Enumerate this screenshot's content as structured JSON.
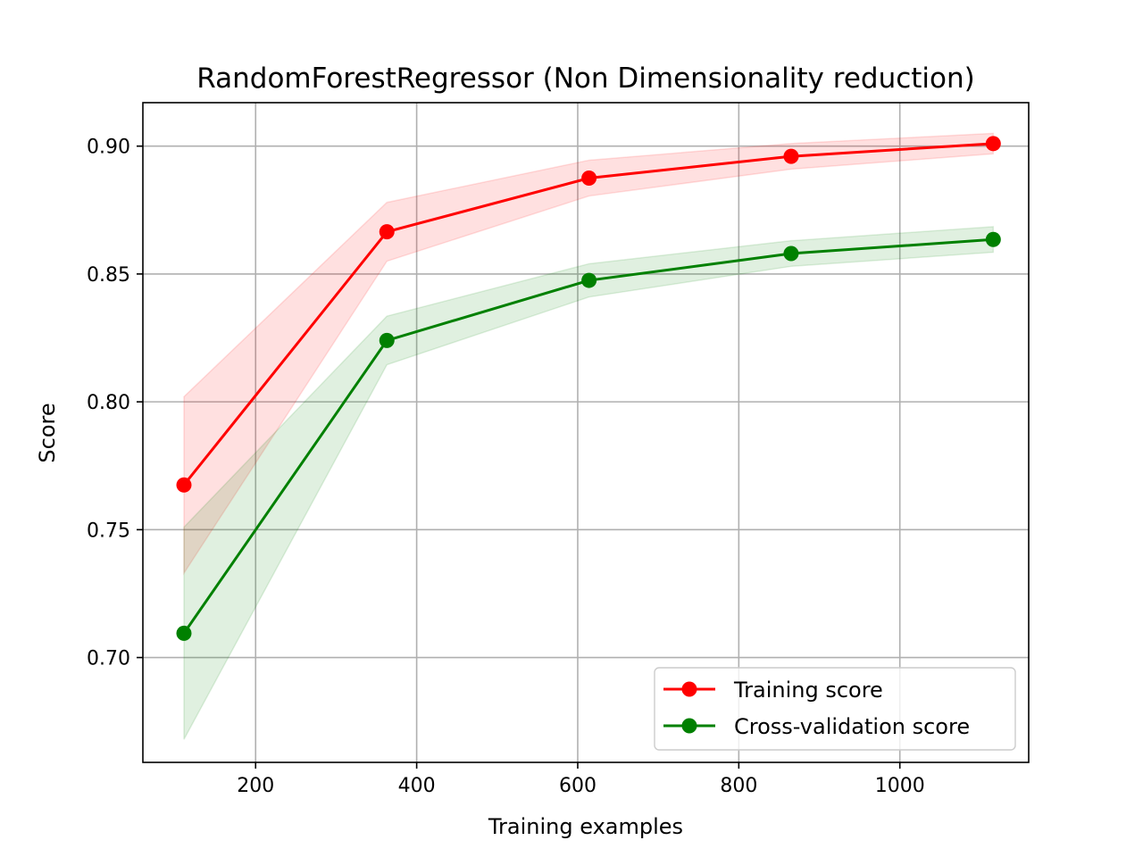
{
  "chart_data": {
    "type": "line",
    "title": "RandomForestRegressor (Non Dimensionality reduction)",
    "xlabel": "Training examples",
    "ylabel": "Score",
    "xlim": [
      60,
      1160
    ],
    "ylim": [
      0.659,
      0.917
    ],
    "xticks": [
      200,
      400,
      600,
      800,
      1000
    ],
    "yticks": [
      0.7,
      0.75,
      0.8,
      0.85,
      0.9
    ],
    "xtick_labels": [
      "200",
      "400",
      "600",
      "800",
      "1000"
    ],
    "ytick_labels": [
      "0.70",
      "0.75",
      "0.80",
      "0.85",
      "0.90"
    ],
    "grid": true,
    "legend_position": "lower-right",
    "x": [
      111,
      363,
      614,
      865,
      1116
    ],
    "series": [
      {
        "name": "Training score",
        "color": "#ff0000",
        "values": [
          0.7675,
          0.8665,
          0.8875,
          0.896,
          0.901
        ],
        "band_lower": [
          0.733,
          0.855,
          0.8805,
          0.891,
          0.897
        ],
        "band_upper": [
          0.802,
          0.878,
          0.8945,
          0.901,
          0.905
        ]
      },
      {
        "name": "Cross-validation score",
        "color": "#008000",
        "values": [
          0.7095,
          0.824,
          0.8475,
          0.858,
          0.8635
        ],
        "band_lower": [
          0.668,
          0.8145,
          0.841,
          0.853,
          0.8585
        ],
        "band_upper": [
          0.751,
          0.8335,
          0.854,
          0.863,
          0.8685
        ]
      }
    ]
  }
}
